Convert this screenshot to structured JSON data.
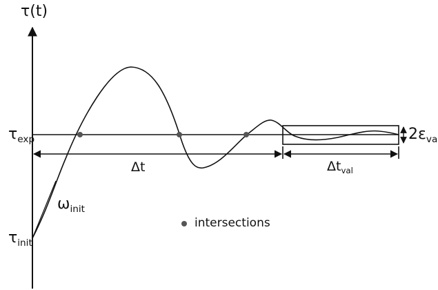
{
  "axis": {
    "y_label": "τ(t)"
  },
  "labels": {
    "tau_exp": {
      "main": "τ",
      "sub": "exp"
    },
    "tau_init": {
      "main": "τ",
      "sub": "init"
    },
    "omega_init": {
      "main": "ω",
      "sub": "init"
    },
    "delta_t": "Δt",
    "delta_t_val": {
      "main": "Δt",
      "sub": "val"
    },
    "two_eps_val": {
      "main": "2ε",
      "sub": "val"
    }
  },
  "legend": {
    "text": "intersections"
  },
  "colors": {
    "line": "#111111",
    "marker": "#555555"
  }
}
